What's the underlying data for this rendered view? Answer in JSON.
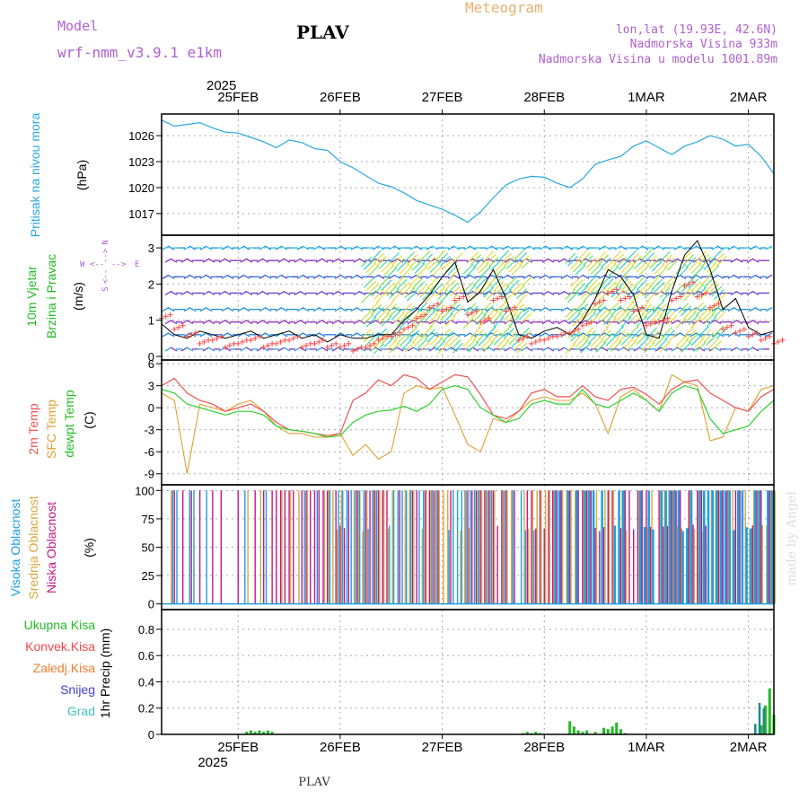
{
  "header": {
    "model_label": "Model",
    "model_name": "wrf-nmm_v3.9.1 e1km",
    "station": "PLAV",
    "product": "Meteogram",
    "lonlat": "lon,lat (19.93E, 42.6N)",
    "elevation": "Nadmorska Visina 933m",
    "model_elevation": "Nadmorska Visina u modelu 1001.89m",
    "year": "2025",
    "footer_station": "PLAV",
    "watermark": "made by Angel"
  },
  "colors": {
    "pressure": "#29a8e0",
    "wind_black": "#000000",
    "gust_red": "#ff4444",
    "temp2m": "#f05050",
    "sfc": "#e0a030",
    "dew": "#30d030",
    "cloud_high": "#1aa0e0",
    "cloud_mid": "#d8a840",
    "cloud_low": "#c01888",
    "precip_total": "#22bb22",
    "snow": "#4040d0",
    "grad": "#40c0c0",
    "purple": "#b060d0",
    "orange": "#f0a030"
  },
  "chart_data": {
    "type": "line",
    "x_dates": [
      "25FEB",
      "26FEB",
      "27FEB",
      "28FEB",
      "1MAR",
      "2MAR"
    ],
    "x_range_hours": [
      -6,
      138
    ],
    "panels": [
      {
        "name": "pressure",
        "ylabel": "Pritisak na nivou mora",
        "unit": "(hPa)",
        "yticks": [
          1017,
          1020,
          1023,
          1026
        ],
        "ylim": [
          1014.5,
          1028.5
        ],
        "series": [
          {
            "name": "pressure",
            "x": [
              -6,
              -3,
              0,
              3,
              6,
              9,
              12,
              15,
              18,
              21,
              24,
              27,
              30,
              33,
              36,
              39,
              42,
              45,
              48,
              51,
              54,
              57,
              60,
              63,
              66,
              69,
              72,
              75,
              78,
              81,
              84,
              87,
              90,
              93,
              96,
              99,
              102,
              105,
              108,
              111,
              114,
              117,
              120,
              123,
              126,
              129,
              132,
              135,
              138
            ],
            "values": [
              1027.8,
              1027.1,
              1027.3,
              1027.5,
              1026.9,
              1026.4,
              1026.3,
              1025.8,
              1025.3,
              1024.6,
              1025.5,
              1025.2,
              1024.5,
              1024.3,
              1023.0,
              1022.3,
              1021.4,
              1020.5,
              1020.1,
              1019.4,
              1018.5,
              1018.0,
              1017.5,
              1016.8,
              1016.0,
              1017.2,
              1018.8,
              1020.3,
              1021.0,
              1021.3,
              1021.2,
              1020.5,
              1020.0,
              1021.0,
              1022.7,
              1023.2,
              1023.6,
              1024.8,
              1025.4,
              1024.6,
              1023.8,
              1024.8,
              1025.3,
              1026.0,
              1025.6,
              1024.8,
              1025.0,
              1023.6,
              1021.6
            ]
          }
        ]
      },
      {
        "name": "wind",
        "ylabel": "10m Vjetar Brzina i Pravac",
        "unit": "(m/s)",
        "yticks": [
          0,
          1,
          2,
          3
        ],
        "ylim": [
          -0.1,
          3.35
        ],
        "compass": [
          "N",
          "S",
          "W",
          "E",
          "<--",
          "-->"
        ],
        "series": [
          {
            "name": "speed",
            "x": [
              -6,
              -3,
              0,
              3,
              6,
              9,
              12,
              15,
              18,
              21,
              24,
              27,
              30,
              33,
              36,
              39,
              42,
              45,
              48,
              51,
              54,
              57,
              60,
              63,
              66,
              69,
              72,
              75,
              78,
              81,
              84,
              87,
              90,
              93,
              96,
              99,
              102,
              105,
              108,
              111,
              114,
              117,
              120,
              123,
              126,
              129,
              132,
              135,
              138
            ],
            "values": [
              0.9,
              0.6,
              0.5,
              0.7,
              0.6,
              0.5,
              0.6,
              0.7,
              0.5,
              0.6,
              0.7,
              0.5,
              0.6,
              0.4,
              0.6,
              0.5,
              0.5,
              0.6,
              0.6,
              1.0,
              1.3,
              1.7,
              2.2,
              2.6,
              1.5,
              1.8,
              2.4,
              1.6,
              0.6,
              0.5,
              0.7,
              0.8,
              0.6,
              1.0,
              1.6,
              2.4,
              2.2,
              1.7,
              0.6,
              0.5,
              1.8,
              2.8,
              3.2,
              2.4,
              1.3,
              1.6,
              0.8,
              0.6,
              0.7
            ]
          },
          {
            "name": "gust",
            "x": [
              -6,
              -3,
              0,
              3,
              6,
              9,
              12,
              15,
              18,
              21,
              24,
              27,
              30,
              33,
              36,
              39,
              42,
              45,
              48,
              51,
              54,
              57,
              60,
              63,
              66,
              69,
              72,
              75,
              78,
              81,
              84,
              87,
              90,
              93,
              96,
              99,
              102,
              105,
              108,
              111,
              114,
              117,
              120,
              123,
              126,
              129,
              132,
              135,
              138
            ],
            "values": [
              1.1,
              0.8,
              0.6,
              0.4,
              0.5,
              0.3,
              0.4,
              0.5,
              0.3,
              0.4,
              0.5,
              0.3,
              0.4,
              0.3,
              0.3,
              0.2,
              0.3,
              0.5,
              0.6,
              0.8,
              1.1,
              1.4,
              1.3,
              1.6,
              1.2,
              1.0,
              1.6,
              1.3,
              0.5,
              0.4,
              0.5,
              0.6,
              0.7,
              0.9,
              1.5,
              1.8,
              1.6,
              1.3,
              0.9,
              1.0,
              1.6,
              2.0,
              1.7,
              1.4,
              0.8,
              0.7,
              0.6,
              0.5,
              0.4
            ]
          }
        ]
      },
      {
        "name": "temperature",
        "ylabel": "2m Temp / SFC Temp / dewpt Temp",
        "unit": "(C)",
        "yticks": [
          -9,
          -6,
          -3,
          0,
          3,
          6
        ],
        "ylim": [
          -10.5,
          6.5
        ],
        "series": [
          {
            "name": "2m Temp",
            "x": [
              -6,
              -3,
              0,
              3,
              6,
              9,
              12,
              15,
              18,
              21,
              24,
              27,
              30,
              33,
              36,
              39,
              42,
              45,
              48,
              51,
              54,
              57,
              60,
              63,
              66,
              69,
              72,
              75,
              78,
              81,
              84,
              87,
              90,
              93,
              96,
              99,
              102,
              105,
              108,
              111,
              114,
              117,
              120,
              123,
              126,
              129,
              132,
              135,
              138
            ],
            "values": [
              3.0,
              4.0,
              2.0,
              1.0,
              0.5,
              -0.5,
              0.0,
              0.5,
              -0.5,
              -2.0,
              -3.0,
              -3.2,
              -3.5,
              -3.8,
              -3.5,
              1.0,
              2.0,
              3.8,
              3.0,
              4.5,
              4.0,
              2.5,
              3.5,
              4.5,
              4.2,
              1.8,
              -1.0,
              -1.5,
              -0.5,
              2.0,
              2.5,
              1.5,
              1.5,
              3.0,
              1.5,
              1.0,
              2.5,
              2.8,
              1.8,
              0.5,
              2.5,
              3.5,
              3.8,
              2.0,
              1.0,
              0.0,
              -0.5,
              1.5,
              2.5
            ]
          },
          {
            "name": "SFC Temp",
            "x": [
              -6,
              -3,
              0,
              3,
              6,
              9,
              12,
              15,
              18,
              21,
              24,
              27,
              30,
              33,
              36,
              39,
              42,
              45,
              48,
              51,
              54,
              57,
              60,
              63,
              66,
              69,
              72,
              75,
              78,
              81,
              84,
              87,
              90,
              93,
              96,
              99,
              102,
              105,
              108,
              111,
              114,
              117,
              120,
              123,
              126,
              129,
              132,
              135,
              138
            ],
            "values": [
              2.0,
              1.0,
              -9.0,
              0.5,
              0.0,
              -0.5,
              0.5,
              1.0,
              -0.5,
              -2.5,
              -3.5,
              -3.5,
              -4.0,
              -4.0,
              -3.5,
              -6.5,
              -5.0,
              -7.0,
              -6.0,
              2.0,
              3.0,
              2.5,
              2.8,
              -1.0,
              -5.0,
              -6.0,
              -1.5,
              -2.0,
              -0.5,
              1.0,
              1.5,
              1.0,
              1.0,
              2.0,
              0.5,
              -3.5,
              1.5,
              2.5,
              1.0,
              -0.5,
              4.5,
              3.5,
              3.0,
              -4.5,
              -4.0,
              0.0,
              -0.5,
              2.5,
              3.0
            ]
          },
          {
            "name": "dewpt Temp",
            "x": [
              -6,
              -3,
              0,
              3,
              6,
              9,
              12,
              15,
              18,
              21,
              24,
              27,
              30,
              33,
              36,
              39,
              42,
              45,
              48,
              51,
              54,
              57,
              60,
              63,
              66,
              69,
              72,
              75,
              78,
              81,
              84,
              87,
              90,
              93,
              96,
              99,
              102,
              105,
              108,
              111,
              114,
              117,
              120,
              123,
              126,
              129,
              132,
              135,
              138
            ],
            "values": [
              2.5,
              2.0,
              0.5,
              0.0,
              -0.5,
              -1.0,
              -0.5,
              -0.5,
              -1.0,
              -2.5,
              -3.0,
              -3.2,
              -3.5,
              -4.0,
              -3.8,
              -2.0,
              -1.0,
              -0.5,
              -0.3,
              0.2,
              -0.5,
              0.5,
              2.5,
              3.0,
              2.5,
              0.0,
              -1.0,
              -2.0,
              -1.5,
              0.5,
              1.0,
              0.5,
              0.5,
              2.5,
              0.5,
              0.0,
              1.0,
              2.0,
              1.0,
              -0.5,
              2.0,
              3.0,
              2.5,
              -1.5,
              -3.5,
              -3.0,
              -2.5,
              -0.5,
              1.0
            ]
          }
        ]
      },
      {
        "name": "cloud",
        "ylabel": "Visoka Oblacnost / Srednja Oblacnost / Niska Oblacnost",
        "unit": "(%)",
        "yticks": [
          0,
          25,
          50,
          75,
          100
        ],
        "ylim": [
          -5,
          105
        ]
      },
      {
        "name": "precip",
        "ylabel": "1hr Precip (mm)",
        "yticks": [
          0,
          0.2,
          0.4,
          0.6,
          0.8
        ],
        "ylim": [
          0,
          0.95
        ],
        "legend": [
          "Ukupna Kisa",
          "Konvek.Kisa",
          "Zaledj.Kisa",
          "Snijeg",
          "Grad"
        ],
        "series": [
          {
            "name": "Ukupna Kisa",
            "x": [
              14,
              15,
              16,
              17,
              18,
              19,
              20,
              79,
              80,
              81,
              82,
              83,
              90,
              91,
              92,
              93,
              94,
              96,
              98,
              99,
              100,
              101,
              102,
              103,
              135,
              136,
              137,
              138
            ],
            "values": [
              0.02,
              0.03,
              0.02,
              0.03,
              0.02,
              0.03,
              0.02,
              0.01,
              0.02,
              0.01,
              0.02,
              0.01,
              0.1,
              0.06,
              0.03,
              0.02,
              0.03,
              0.02,
              0.05,
              0.04,
              0.06,
              0.09,
              0.04,
              0.01,
              0.07,
              0.22,
              0.35,
              0.15
            ]
          },
          {
            "name": "Snijeg",
            "x": [
              134,
              135,
              136
            ],
            "values": [
              0.08,
              0.24,
              0.2
            ]
          }
        ]
      }
    ]
  }
}
